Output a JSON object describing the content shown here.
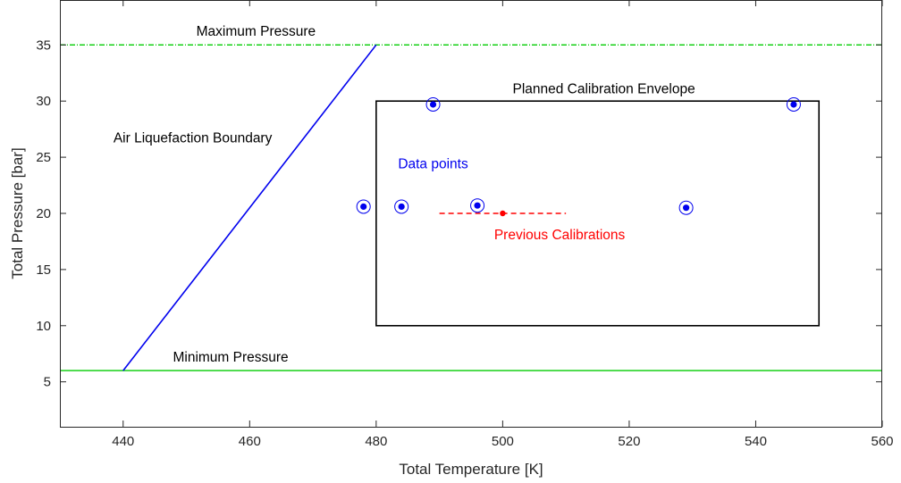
{
  "chart_data": {
    "type": "scatter",
    "xlabel": "Total Temperature [K]",
    "ylabel": "Total Pressure [bar]",
    "xlim": [
      430,
      560
    ],
    "ylim": [
      1,
      39
    ],
    "x_ticks": [
      440,
      460,
      480,
      500,
      520,
      540,
      560
    ],
    "y_ticks": [
      5,
      10,
      15,
      20,
      25,
      30,
      35
    ],
    "grid": false,
    "colors": {
      "max_pressure": "#00cc00",
      "min_pressure": "#00cc00",
      "liquefaction": "#0000ee",
      "data_points": "#0000ee",
      "previous": "#ff0000",
      "envelope": "#000000"
    },
    "lines": [
      {
        "id": "maximum-pressure",
        "style": "dash-dot",
        "x": [
          430,
          560
        ],
        "y": [
          35,
          35
        ]
      },
      {
        "id": "minimum-pressure",
        "style": "solid",
        "x": [
          430,
          560
        ],
        "y": [
          6,
          6
        ]
      },
      {
        "id": "liquefaction-boundary",
        "style": "solid",
        "x": [
          440,
          480
        ],
        "y": [
          6,
          35
        ]
      },
      {
        "id": "previous-calibration-range",
        "style": "dashed",
        "x": [
          490,
          510
        ],
        "y": [
          20,
          20
        ]
      }
    ],
    "envelope": {
      "x": [
        480,
        550
      ],
      "y": [
        10,
        30
      ]
    },
    "data_points": {
      "x": [
        478,
        484,
        489,
        496,
        529,
        546
      ],
      "y": [
        20.6,
        20.6,
        29.7,
        20.7,
        20.5,
        29.7
      ]
    },
    "previous_calibration_point": {
      "x": 500,
      "y": 20
    },
    "annotations": [
      {
        "id": "maximum-pressure-label",
        "text": "Maximum Pressure",
        "x": 461,
        "y": 36.2,
        "color": "#000000"
      },
      {
        "id": "minimum-pressure-label",
        "text": "Minimum Pressure",
        "x": 457,
        "y": 7.2,
        "color": "#000000"
      },
      {
        "id": "liquefaction-label",
        "text": "Air Liquefaction Boundary",
        "x": 451,
        "y": 26.7,
        "color": "#000000"
      },
      {
        "id": "envelope-label",
        "text": "Planned Calibration Envelope",
        "x": 516,
        "y": 31.1,
        "color": "#000000"
      },
      {
        "id": "data-points-label",
        "text": "Data points",
        "x": 489,
        "y": 24.4,
        "color": "#0000ee"
      },
      {
        "id": "previous-calibrations-label",
        "text": "Previous Calibrations",
        "x": 509,
        "y": 18.1,
        "color": "#ff0000"
      }
    ]
  }
}
